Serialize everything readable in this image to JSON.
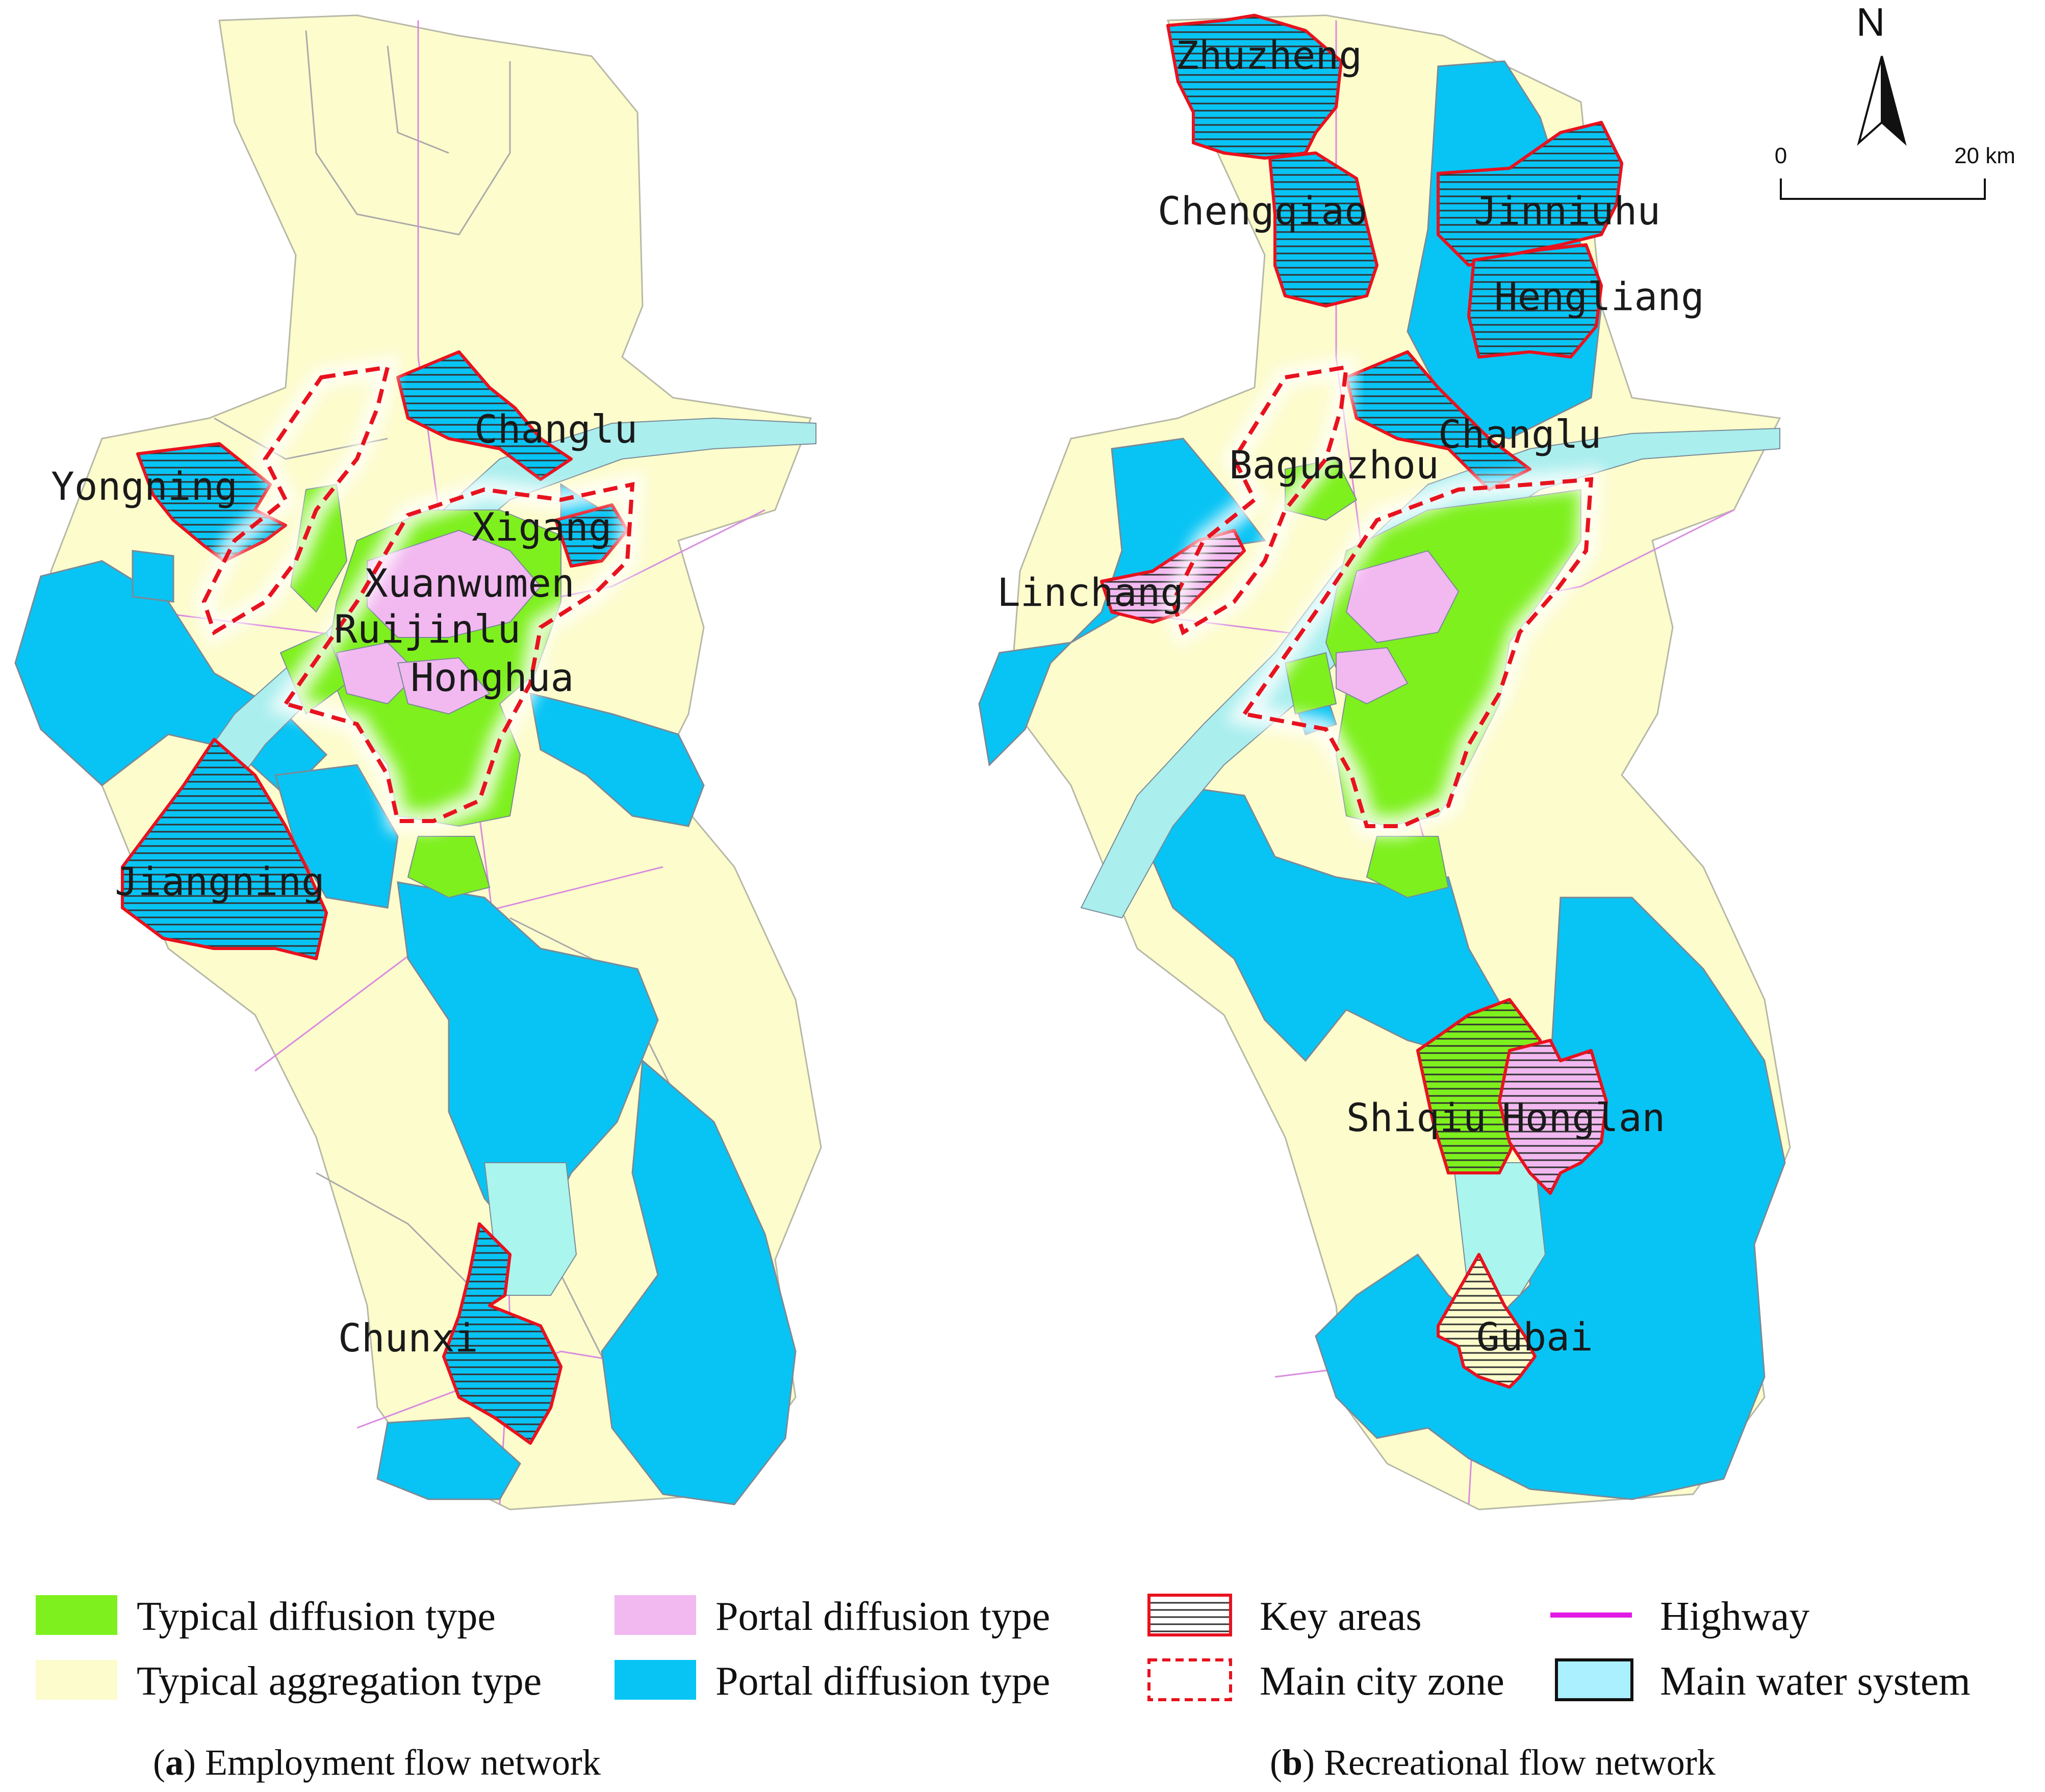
{
  "colors": {
    "typical_diffusion": "#7ef01e",
    "typical_aggregation": "#fcfccc",
    "portal_diffusion_pink": "#f2b8f0",
    "portal_diffusion_blue": "#08c4f4",
    "water": "#a6f0f0",
    "key_area_border": "#e8121e",
    "highway": "#e11ae6"
  },
  "compass": {
    "north_label": "N"
  },
  "scale_bar": {
    "start_label": "0",
    "end_label": "20 km"
  },
  "map_a": {
    "labels": [
      "Changlu",
      "Yongning",
      "Xigang",
      "Xuanwumen",
      "Ruijinlu",
      "Honghua",
      "Jiangning",
      "Chunxi"
    ],
    "caption_letter": "a",
    "caption_text": "Employment flow network"
  },
  "map_b": {
    "labels": [
      "Zhuzheng",
      "Chengqiao",
      "Jinniuhu",
      "Hengliang",
      "Changlu",
      "Baguazhou",
      "Linchang",
      "Shiqiu",
      "Honglan",
      "Gubai"
    ],
    "caption_letter": "b",
    "caption_text": "Recreational flow network"
  },
  "legend": [
    {
      "label": "Typical diffusion type",
      "symbol": "fill-green"
    },
    {
      "label": "Portal diffusion type",
      "symbol": "fill-pink"
    },
    {
      "label": "Key areas",
      "symbol": "hatched-red-box"
    },
    {
      "label": "Highway",
      "symbol": "magenta-line"
    },
    {
      "label": "Typical aggregation type",
      "symbol": "fill-yellow"
    },
    {
      "label": "Portal diffusion type",
      "symbol": "fill-blue"
    },
    {
      "label": "Main city zone",
      "symbol": "dashed-red-box"
    },
    {
      "label": "Main water system",
      "symbol": "water-box"
    }
  ]
}
